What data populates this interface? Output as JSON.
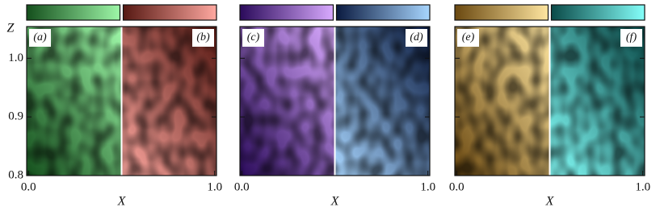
{
  "chart_data": [
    {
      "type": "heatmap",
      "xlabel": "X",
      "ylabel": "Z",
      "xlim": [
        -0.01,
        1.01
      ],
      "ylim": [
        0.8,
        1.054
      ],
      "xticks": [
        {
          "value": 0,
          "label": "0.0"
        },
        {
          "value": 1,
          "label": "1.0"
        }
      ],
      "yticks": [
        {
          "value": 0.8,
          "label": "0.8"
        },
        {
          "value": 0.9,
          "label": "0.9"
        },
        {
          "value": 1,
          "label": "1.0"
        }
      ],
      "maps": [
        {
          "label": "(a)",
          "colormap": [
            "#144f1c",
            "#9ef7a8"
          ]
        },
        {
          "label": "(b)",
          "colormap": [
            "#561812",
            "#ffa8a0"
          ]
        }
      ]
    },
    {
      "type": "heatmap",
      "xlabel": "X",
      "xlim": [
        -0.01,
        1.01
      ],
      "ylim": [
        0.8,
        1.054
      ],
      "xticks": [
        {
          "value": 0,
          "label": "0.0"
        },
        {
          "value": 1,
          "label": "1.0"
        }
      ],
      "maps": [
        {
          "label": "(c)",
          "colormap": [
            "#2a0a5a",
            "#d9aaff"
          ]
        },
        {
          "label": "(d)",
          "colormap": [
            "#0a1a40",
            "#a8d6ff"
          ]
        }
      ]
    },
    {
      "type": "heatmap",
      "xlabel": "X",
      "xlim": [
        -0.01,
        1.01
      ],
      "ylim": [
        0.8,
        1.054
      ],
      "xticks": [
        {
          "value": 0,
          "label": "0.0"
        },
        {
          "value": 1,
          "label": "1.0"
        }
      ],
      "maps": [
        {
          "label": "(e)",
          "colormap": [
            "#6a4810",
            "#ffe6a0"
          ]
        },
        {
          "label": "(f)",
          "colormap": [
            "#0a4a48",
            "#84fffa"
          ]
        }
      ]
    }
  ]
}
